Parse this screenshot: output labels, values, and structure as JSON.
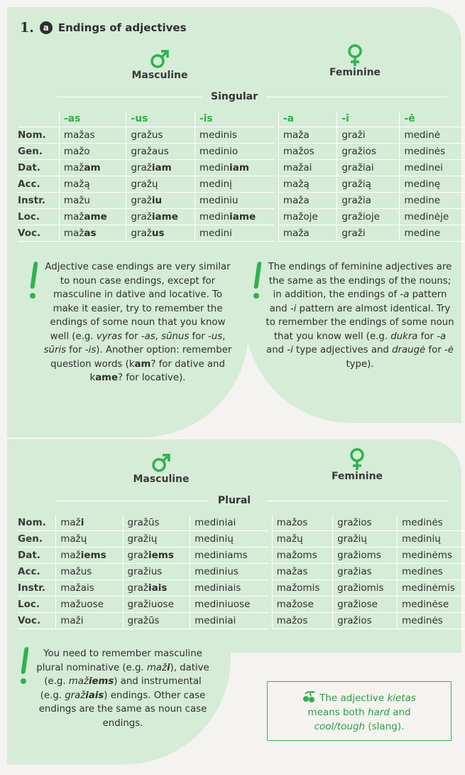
{
  "title": {
    "number": "1.",
    "badge": "a",
    "text": "Endings of adjectives"
  },
  "genders": {
    "masculine": "Masculine",
    "feminine": "Feminine"
  },
  "singular": {
    "label": "Singular",
    "headers": [
      "-as",
      "-us",
      "-is",
      "-a",
      "-i",
      "-ė"
    ],
    "rows": [
      {
        "case": "Nom.",
        "cells": [
          [
            "maž",
            "as"
          ],
          [
            "graž",
            "us"
          ],
          [
            "medin",
            "is"
          ],
          [
            "maž",
            "a"
          ],
          [
            "graž",
            "i"
          ],
          [
            "medin",
            "ė"
          ]
        ],
        "bold": []
      },
      {
        "case": "Gen.",
        "cells": [
          [
            "maž",
            "o"
          ],
          [
            "graž",
            "aus"
          ],
          [
            "medin",
            "io"
          ],
          [
            "maž",
            "os"
          ],
          [
            "graž",
            "ios"
          ],
          [
            "medin",
            "ės"
          ]
        ],
        "bold": []
      },
      {
        "case": "Dat.",
        "cells": [
          [
            "maž",
            "am"
          ],
          [
            "graž",
            "iam"
          ],
          [
            "medin",
            "iam"
          ],
          [
            "maž",
            "ai"
          ],
          [
            "graž",
            "iai"
          ],
          [
            "medin",
            "ei"
          ]
        ],
        "bold": [
          0,
          1,
          2
        ]
      },
      {
        "case": "Acc.",
        "cells": [
          [
            "maž",
            "ą"
          ],
          [
            "graž",
            "ų"
          ],
          [
            "medin",
            "į"
          ],
          [
            "maž",
            "ą"
          ],
          [
            "graž",
            "ią"
          ],
          [
            "medin",
            "ę"
          ]
        ],
        "bold": []
      },
      {
        "case": "Instr.",
        "cells": [
          [
            "maž",
            "u"
          ],
          [
            "graž",
            "iu"
          ],
          [
            "medin",
            "iu"
          ],
          [
            "maž",
            "a"
          ],
          [
            "graž",
            "ia"
          ],
          [
            "medin",
            "e"
          ]
        ],
        "bold": [
          1
        ]
      },
      {
        "case": "Loc.",
        "cells": [
          [
            "maž",
            "ame"
          ],
          [
            "graž",
            "iame"
          ],
          [
            "medin",
            "iame"
          ],
          [
            "maž",
            "oje"
          ],
          [
            "graž",
            "ioje"
          ],
          [
            "medin",
            "ėje"
          ]
        ],
        "bold": [
          0,
          1,
          2
        ]
      },
      {
        "case": "Voc.",
        "cells": [
          [
            "maž",
            "as"
          ],
          [
            "graž",
            "us"
          ],
          [
            "medin",
            "i"
          ],
          [
            "maž",
            "a"
          ],
          [
            "graž",
            "i"
          ],
          [
            "medin",
            "e"
          ]
        ],
        "bold": [
          0,
          1
        ]
      }
    ]
  },
  "plural": {
    "label": "Plural",
    "rows": [
      {
        "case": "Nom.",
        "cells": [
          [
            "maž",
            "i"
          ],
          [
            "graž",
            "ūs"
          ],
          [
            "medin",
            "iai"
          ],
          [
            "maž",
            "os"
          ],
          [
            "graž",
            "ios"
          ],
          [
            "medin",
            "ės"
          ]
        ],
        "bold": [
          0
        ]
      },
      {
        "case": "Gen.",
        "cells": [
          [
            "maž",
            "ų"
          ],
          [
            "graž",
            "ių"
          ],
          [
            "medin",
            "ių"
          ],
          [
            "maž",
            "ų"
          ],
          [
            "graž",
            "ių"
          ],
          [
            "medin",
            "ių"
          ]
        ],
        "bold": []
      },
      {
        "case": "Dat.",
        "cells": [
          [
            "maž",
            "iems"
          ],
          [
            "graž",
            "iems"
          ],
          [
            "medin",
            "iams"
          ],
          [
            "maž",
            "oms"
          ],
          [
            "graž",
            "ioms"
          ],
          [
            "medin",
            "ėms"
          ]
        ],
        "bold": [
          0,
          1
        ]
      },
      {
        "case": "Acc.",
        "cells": [
          [
            "maž",
            "us"
          ],
          [
            "graž",
            "ius"
          ],
          [
            "medin",
            "ius"
          ],
          [
            "maž",
            "as"
          ],
          [
            "graž",
            "ias"
          ],
          [
            "medin",
            "es"
          ]
        ],
        "bold": []
      },
      {
        "case": "Instr.",
        "cells": [
          [
            "maž",
            "ais"
          ],
          [
            "graž",
            "iais"
          ],
          [
            "medin",
            "iais"
          ],
          [
            "maž",
            "omis"
          ],
          [
            "graž",
            "iomis"
          ],
          [
            "medin",
            "ėmis"
          ]
        ],
        "bold": [
          1
        ]
      },
      {
        "case": "Loc.",
        "cells": [
          [
            "maž",
            "uose"
          ],
          [
            "graž",
            "iuose"
          ],
          [
            "medin",
            "iuose"
          ],
          [
            "maž",
            "ose"
          ],
          [
            "graž",
            "iose"
          ],
          [
            "medin",
            "ėse"
          ]
        ],
        "bold": []
      },
      {
        "case": "Voc.",
        "cells": [
          [
            "maž",
            "i"
          ],
          [
            "graž",
            "ūs"
          ],
          [
            "medin",
            "iai"
          ],
          [
            "maž",
            "os"
          ],
          [
            "graž",
            "ios"
          ],
          [
            "medin",
            "ės"
          ]
        ],
        "bold": []
      }
    ]
  },
  "notes": {
    "left": "Adjective case endings are very similar to noun case endings, except for masculine in dative and locative. To make it easier, try to remember the endings of some noun that you know well (e.g. vyras for -as, sūnus for -us, sūris for -is). Another option: remember question words (kam? for dative and kame? for locative).",
    "right": "The endings of feminine adjectives are the same as the endings of the nouns; in addition, the endings of -a pattern and -i pattern are almost identical. Try to remember the endings of some noun that you know well (e.g. dukra for -a and -i type adjectives and draugė for -ė type).",
    "bottom": "You need to remember masculine plural nominative (e.g. maži), dative (e.g. mažiems) and instrumental (e.g. gražiais) endings. Other case endings are the same as noun case endings."
  },
  "tip": "The adjective kietas means both hard and cool/tough (slang).",
  "colors": {
    "accent": "#2fb24d",
    "panel": "#d5ecd7",
    "page": "#f4f3ef"
  }
}
